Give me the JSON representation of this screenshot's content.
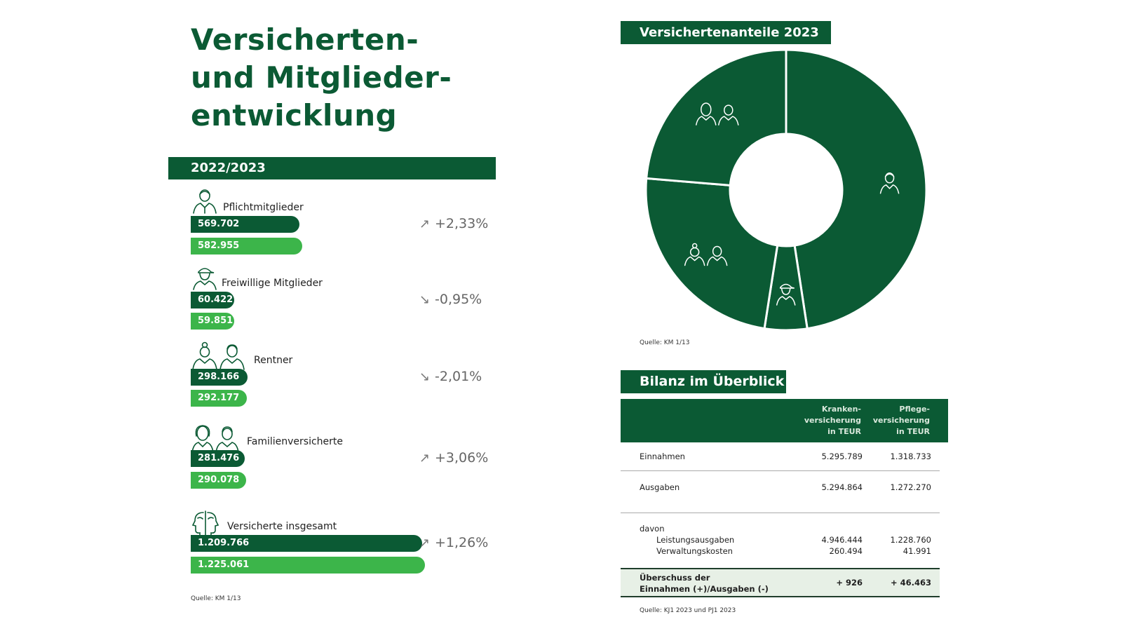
{
  "title": {
    "line1": "Versicherten-",
    "line2": "und Mitglieder-",
    "line3": "entwicklung"
  },
  "years_band": "2022/2023",
  "groups": [
    {
      "label": "Pflichtmitglieder",
      "icon": "person-icon",
      "value_2022_text": "569.702",
      "value_2023_text": "582.955",
      "change": "+2,33%",
      "direction": "up"
    },
    {
      "label": "Freiwillige Mitglieder",
      "icon": "person-cap-icon",
      "value_2022_text": "60.422",
      "value_2023_text": "59.851",
      "change": "-0,95%",
      "direction": "down"
    },
    {
      "label": "Rentner",
      "icon": "elderly-couple-icon",
      "value_2022_text": "298.166",
      "value_2023_text": "292.177",
      "change": "-2,01%",
      "direction": "down"
    },
    {
      "label": "Familienversicherte",
      "icon": "family-icon",
      "value_2022_text": "281.476",
      "value_2023_text": "290.078",
      "change": "+3,06%",
      "direction": "up"
    },
    {
      "label": "Versicherte insgesamt",
      "icon": "faces-icon",
      "value_2022_text": "1.209.766",
      "value_2023_text": "1.225.061",
      "change": "+1,26%",
      "direction": "up"
    }
  ],
  "source_left": "Quelle: KM 1/13",
  "chart_data": [
    {
      "type": "bar",
      "categories": [
        "Pflichtmitglieder",
        "Freiwillige Mitglieder",
        "Rentner",
        "Familienversicherte",
        "Versicherte insgesamt"
      ],
      "series": [
        {
          "values": [
            569702,
            60422,
            298166,
            281476,
            1209766
          ]
        },
        {
          "values": [
            582955,
            59851,
            292177,
            290078,
            1225061
          ]
        }
      ],
      "colors": [
        "#0b5a34",
        "#3cb54a"
      ],
      "orientation": "horizontal"
    },
    {
      "type": "pie",
      "title": "Versichertenanteile 2023",
      "labels": [
        "Pflichtmitglieder",
        "Freiwillige Mitglieder",
        "Rentner",
        "Familienversicherte"
      ],
      "values": [
        582955,
        59851,
        292177,
        290078
      ],
      "color": "#0b5a34",
      "slice_border": "#ffffff",
      "donut": true
    }
  ],
  "pie_title": "Versichertenanteile 2023",
  "source_pie": "Quelle: KM 1/13",
  "table": {
    "title": "Bilanz im Überblick",
    "col1_header": [
      "Kranken-",
      "versicherung",
      "in TEUR"
    ],
    "col2_header": [
      "Pflege-",
      "versicherung",
      "in TEUR"
    ],
    "rows": {
      "einnahmen": {
        "label": "Einnahmen",
        "v1": "5.295.789",
        "v2": "1.318.733"
      },
      "ausgaben": {
        "label": "Ausgaben",
        "v1": "5.294.864",
        "v2": "1.272.270"
      },
      "davon": "davon",
      "leistung": {
        "label": "Leistungsausgaben",
        "v1": "4.946.444",
        "v2": "1.228.760"
      },
      "verwaltung": {
        "label": "Verwaltungskosten",
        "v1": "260.494",
        "v2": "41.991"
      }
    },
    "summary": {
      "label_line1": "Überschuss der",
      "label_line2": "Einnahmen (+)/Ausgaben (-)",
      "v1": "+ 926",
      "v2": "+ 46.463"
    }
  },
  "source_table": "Quelle: KJ1 2023 und PJ1 2023",
  "colors": {
    "dark_green": "#0b5a34",
    "light_green": "#3cb54a",
    "summary_bg": "#e7f0e6"
  }
}
